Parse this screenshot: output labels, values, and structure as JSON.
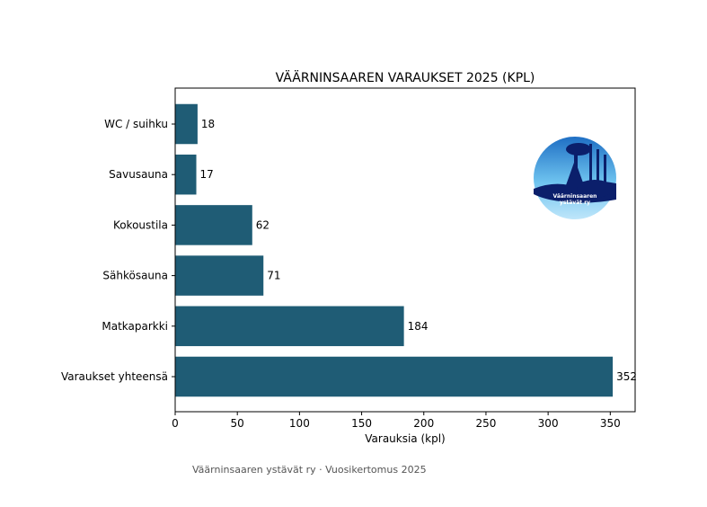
{
  "chart_data": {
    "type": "bar",
    "orientation": "horizontal",
    "title": "VÄÄRNINSAAREN VARAUKSET 2025 (KPL)",
    "xlabel": "Varauksia (kpl)",
    "ylabel": "",
    "categories": [
      "WC / suihku",
      "Savusauna",
      "Kokoustila",
      "Sähkösauna",
      "Matkaparkki",
      "Varaukset yhteensä"
    ],
    "values": [
      18,
      17,
      62,
      71,
      184,
      352
    ],
    "xlim": [
      0,
      370
    ],
    "xticks": [
      0,
      50,
      100,
      150,
      200,
      250,
      300,
      350
    ],
    "bar_color": "#1f5c75",
    "grid": false
  },
  "footer": "Väärninsaaren ystävät ry · Vuosikertomus 2025",
  "logo": {
    "icon": "association-logo-icon",
    "text": "Väärninsaaren ystävät ry",
    "colors": {
      "sky_light": "#8fd0f2",
      "sky_dark": "#1f7fc9",
      "land": "#0b1f6b"
    }
  }
}
